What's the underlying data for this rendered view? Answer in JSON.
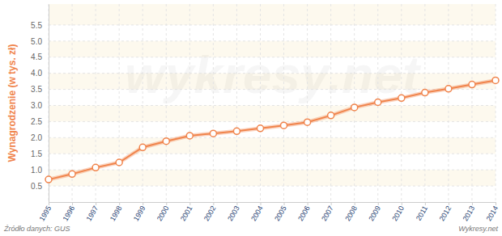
{
  "chart_data": {
    "type": "line",
    "y_label": "Wynagrodzenie (w tys. zł)",
    "annotations": [
      "Źródło danych: GUS",
      "Wykresy.net",
      "wykresy.net"
    ],
    "x": [
      1995,
      1996,
      1997,
      1998,
      1999,
      2000,
      2001,
      2002,
      2003,
      2004,
      2005,
      2006,
      2007,
      2008,
      2009,
      2010,
      2011,
      2012,
      2013,
      2014
    ],
    "values": [
      0.7,
      0.87,
      1.07,
      1.23,
      1.7,
      1.89,
      2.06,
      2.13,
      2.2,
      2.29,
      2.38,
      2.48,
      2.69,
      2.94,
      3.1,
      3.23,
      3.4,
      3.52,
      3.65,
      3.78
    ],
    "color": "#f0844c",
    "marker": "circle",
    "xlim": [
      1995,
      2014
    ],
    "xticks": [
      1995,
      1996,
      1997,
      1998,
      1999,
      2000,
      2001,
      2002,
      2003,
      2004,
      2005,
      2006,
      2007,
      2008,
      2009,
      2010,
      2011,
      2012,
      2013,
      2014
    ],
    "ylim": [
      0,
      6.15
    ],
    "yticks": [
      0.5,
      {
        "value": 1,
        "label": "1.0"
      },
      1.5,
      {
        "value": 2,
        "label": "2.0"
      },
      2.5,
      {
        "value": 3,
        "label": "3.0"
      },
      3.5,
      {
        "value": 4,
        "label": "4.0"
      },
      4.5,
      {
        "value": 5,
        "label": "5.0"
      },
      5.5
    ],
    "grid": true
  }
}
